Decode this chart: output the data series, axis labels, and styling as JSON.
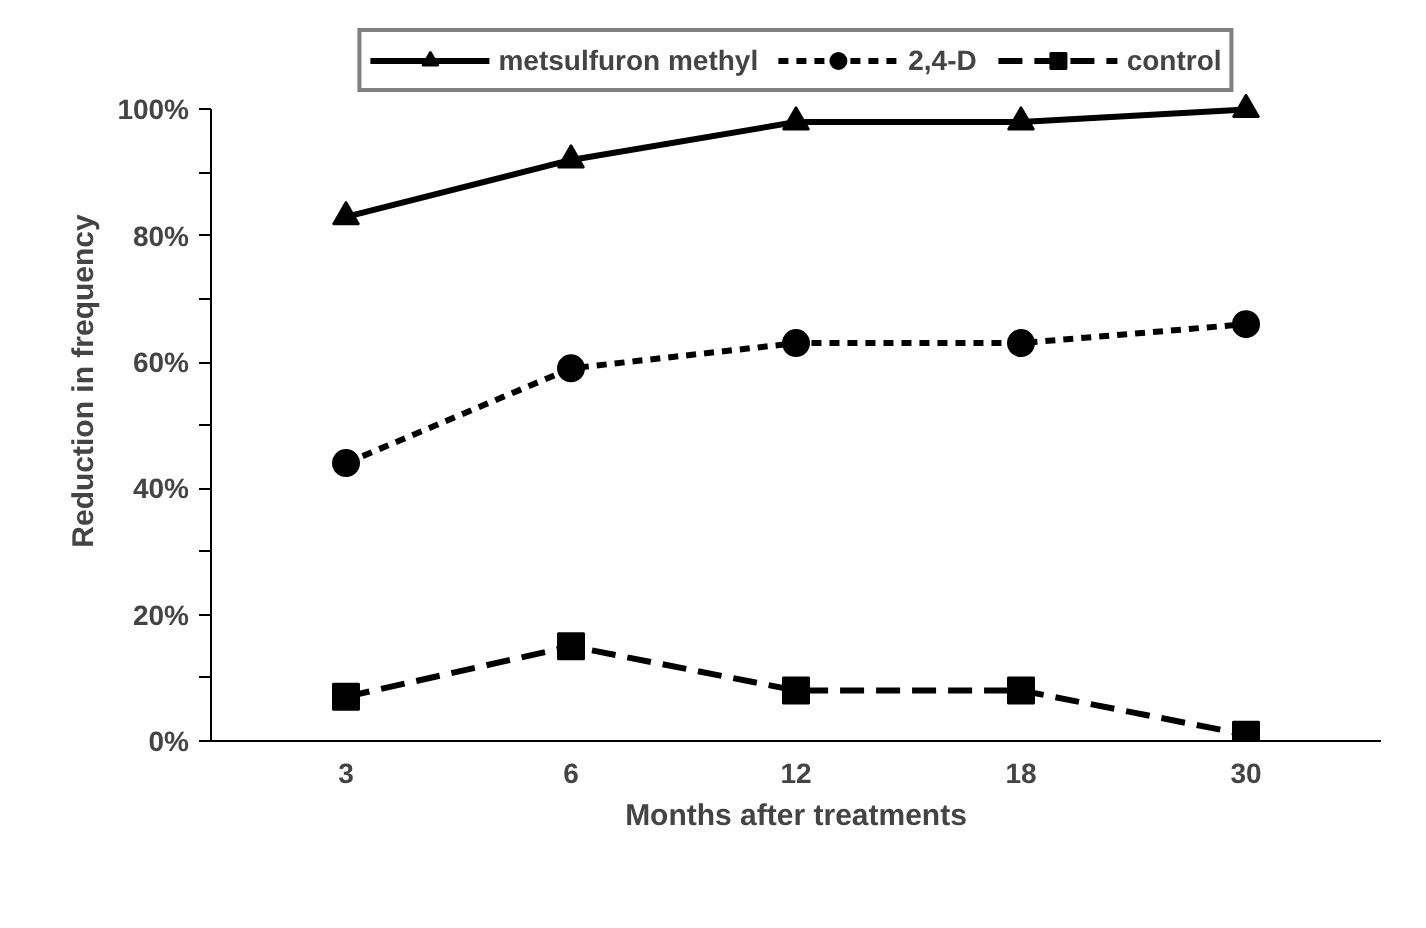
{
  "chart_data": {
    "type": "line",
    "xlabel": "Months after treatments",
    "ylabel": "Reduction in frequency",
    "categories": [
      "3",
      "6",
      "12",
      "18",
      "30"
    ],
    "series": [
      {
        "name": "metsulfuron methyl",
        "color": "#000000",
        "marker": "triangle",
        "line_style": "solid",
        "values": [
          83,
          92,
          98,
          98,
          100
        ]
      },
      {
        "name": "2,4-D",
        "color": "#000000",
        "marker": "circle",
        "line_style": "dotted",
        "values": [
          44,
          59,
          63,
          63,
          66
        ]
      },
      {
        "name": "control",
        "color": "#000000",
        "marker": "square",
        "line_style": "dashed",
        "values": [
          7,
          15,
          8,
          8,
          1
        ]
      }
    ],
    "ylim": [
      0,
      100
    ],
    "yticks": [
      {
        "value": 0,
        "label": "0%"
      },
      {
        "value": 10,
        "label": null
      },
      {
        "value": 20,
        "label": "20%"
      },
      {
        "value": 30,
        "label": null
      },
      {
        "value": 40,
        "label": "40%"
      },
      {
        "value": 50,
        "label": null
      },
      {
        "value": 60,
        "label": "60%"
      },
      {
        "value": 70,
        "label": null
      },
      {
        "value": 80,
        "label": "80%"
      },
      {
        "value": 90,
        "label": null
      },
      {
        "value": 100,
        "label": "100%"
      }
    ],
    "grid": false,
    "legend": "top"
  }
}
